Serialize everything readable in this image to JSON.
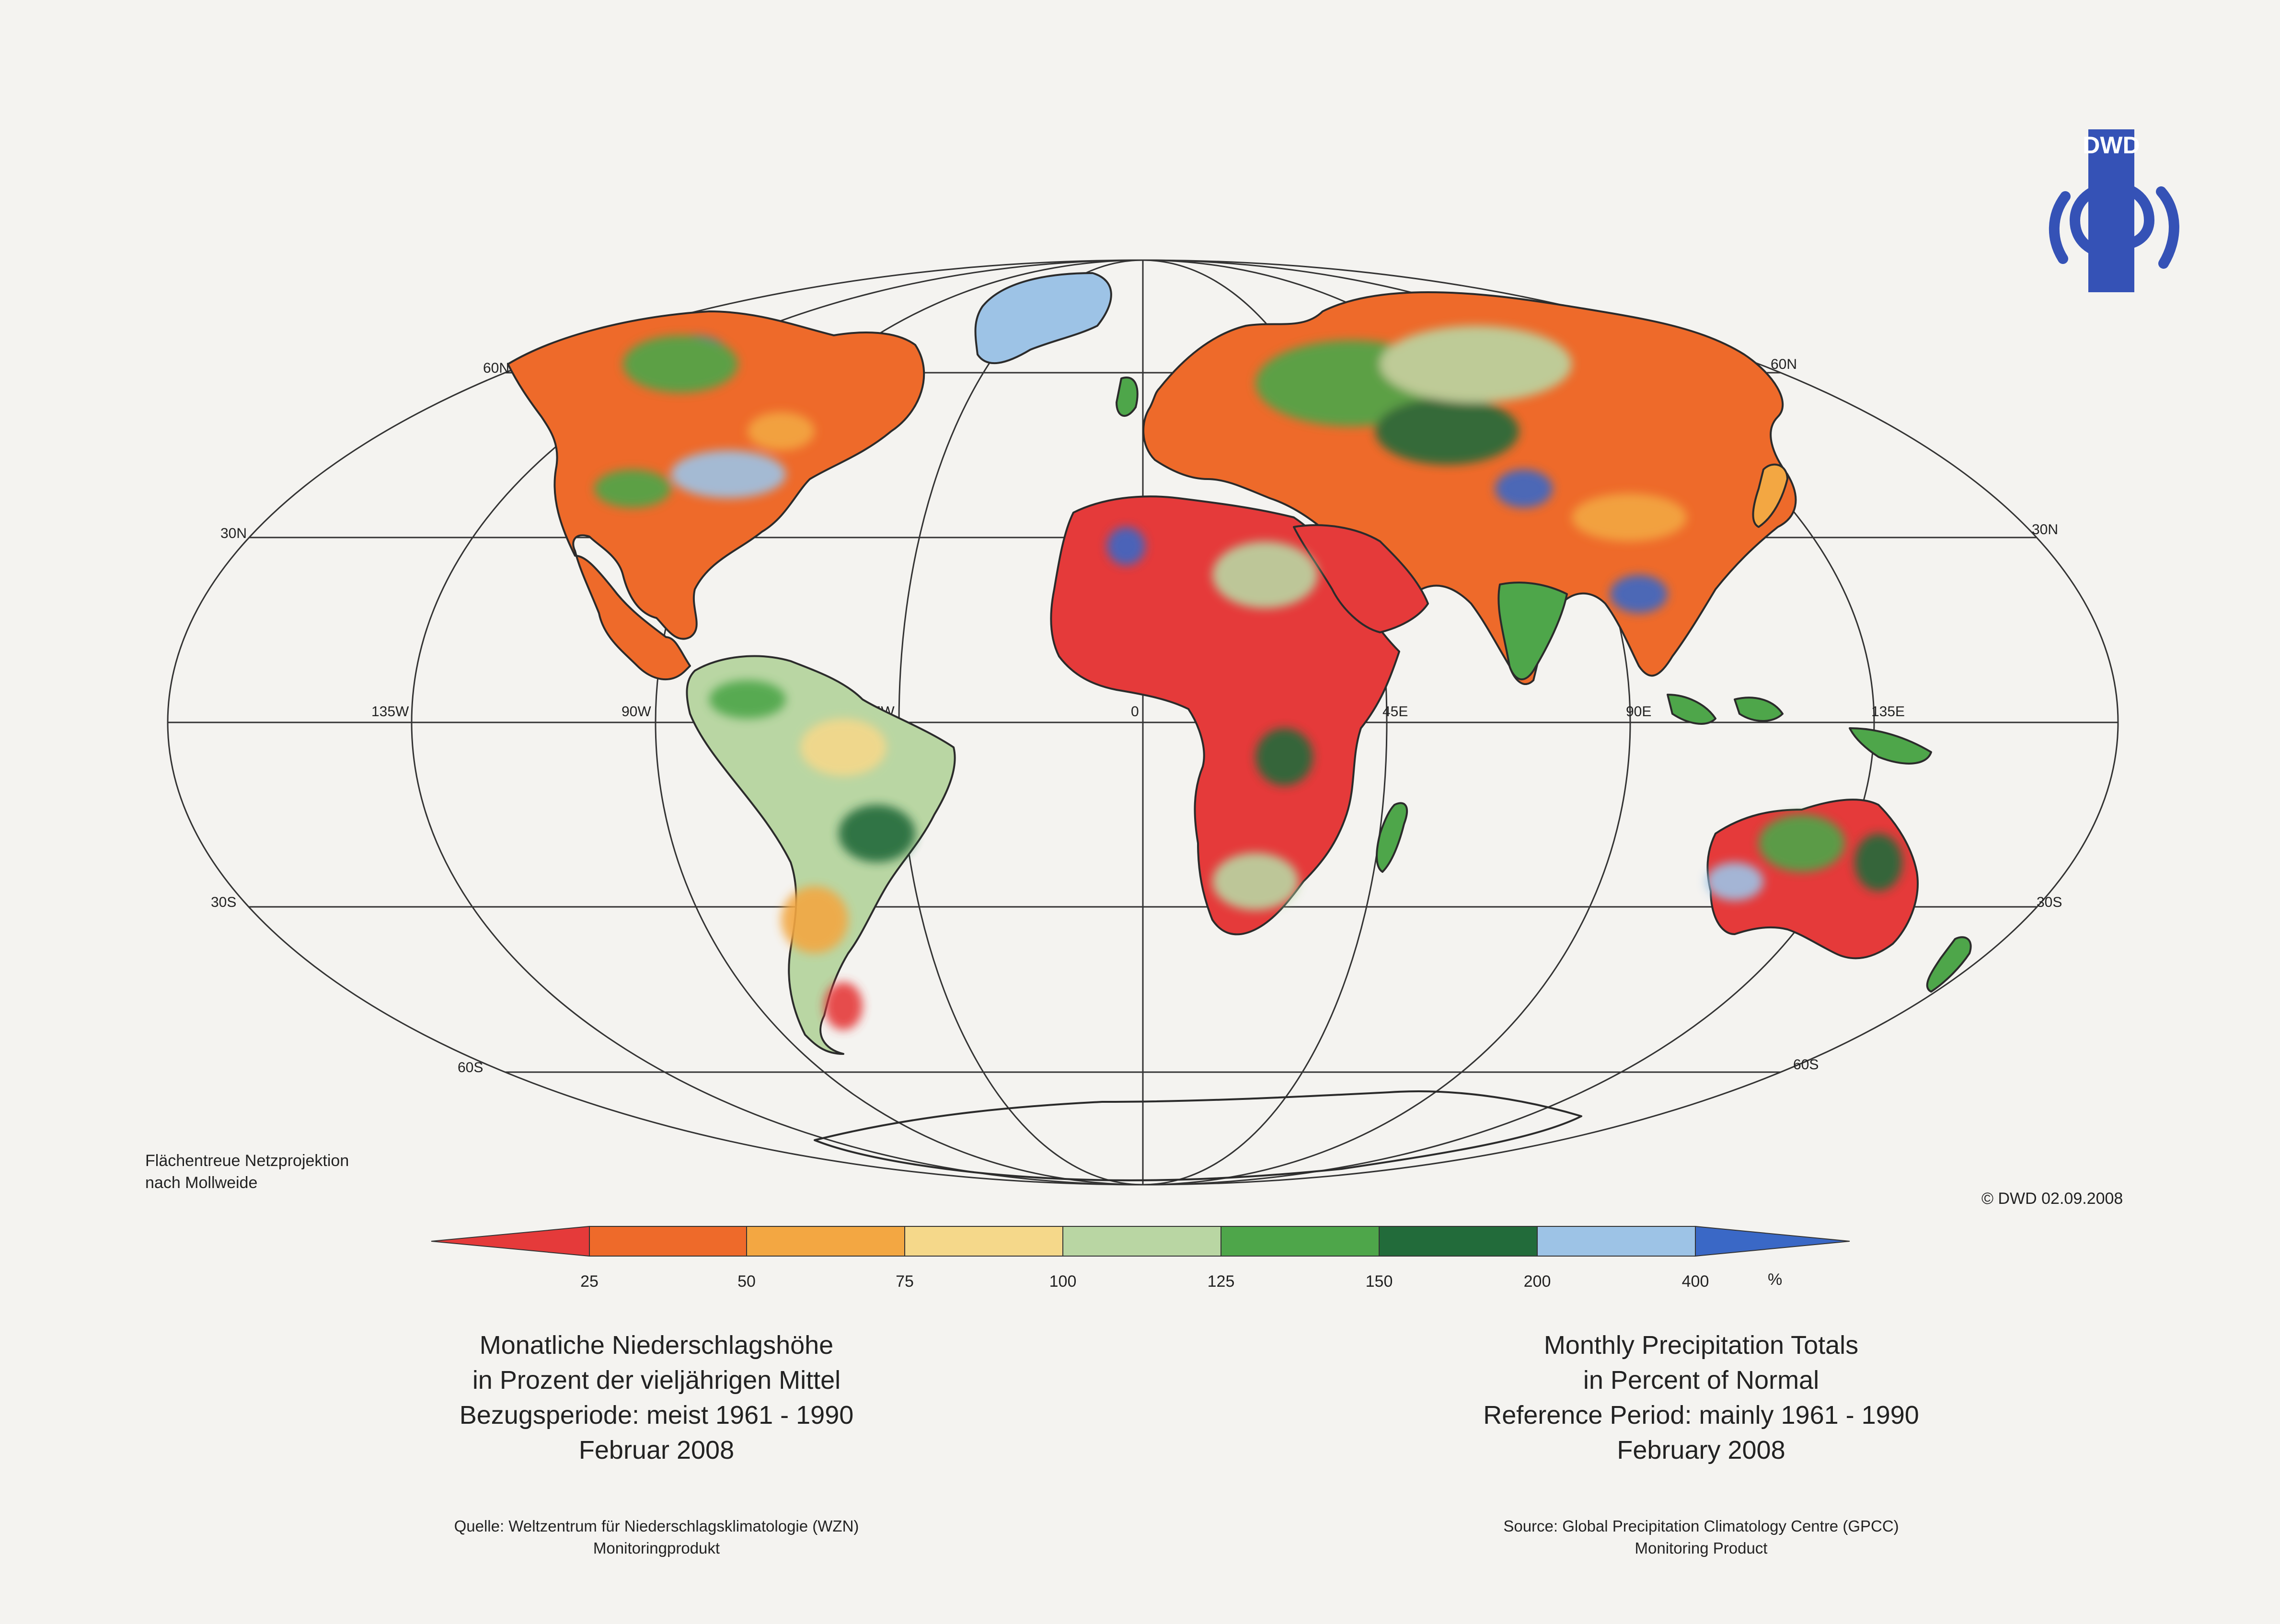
{
  "map": {
    "projection_note": [
      "Flächentreue Netzprojektion",
      "nach Mollweide"
    ],
    "grid_labels": {
      "lat": [
        "60N",
        "30N",
        "30S",
        "60S"
      ],
      "lon": [
        "135W",
        "90W",
        "45W",
        "0",
        "45E",
        "90E",
        "135E"
      ]
    },
    "colors": {
      "lt25": "#e53a3a",
      "25-50": "#ee6a2a",
      "50-75": "#f3a742",
      "75-100": "#f5d88a",
      "100-125": "#b9d6a3",
      "125-150": "#4ea64a",
      "150-200": "#226b3a",
      "200-400": "#9dc3e6",
      "gt400": "#3a68c6",
      "coast": "#2b2b2b",
      "grid": "#333333"
    }
  },
  "legend": {
    "ticks": [
      "25",
      "50",
      "75",
      "100",
      "125",
      "150",
      "200",
      "400"
    ],
    "unit": "%"
  },
  "logo": {
    "text": "DWD",
    "color": "#3552b6"
  },
  "copyright": "© DWD 02.09.2008",
  "title_de": [
    "Monatliche Niederschlagshöhe",
    "in Prozent der vieljährigen Mittel",
    "Bezugsperiode: meist 1961 - 1990",
    "Februar 2008"
  ],
  "title_en": [
    "Monthly Precipitation Totals",
    "in Percent of Normal",
    "Reference Period: mainly 1961 - 1990",
    "February 2008"
  ],
  "source_de": [
    "Quelle: Weltzentrum für Niederschlagsklimatologie (WZN)",
    "Monitoringprodukt"
  ],
  "source_en": [
    "Source: Global Precipitation Climatology Centre (GPCC)",
    "Monitoring Product"
  ]
}
